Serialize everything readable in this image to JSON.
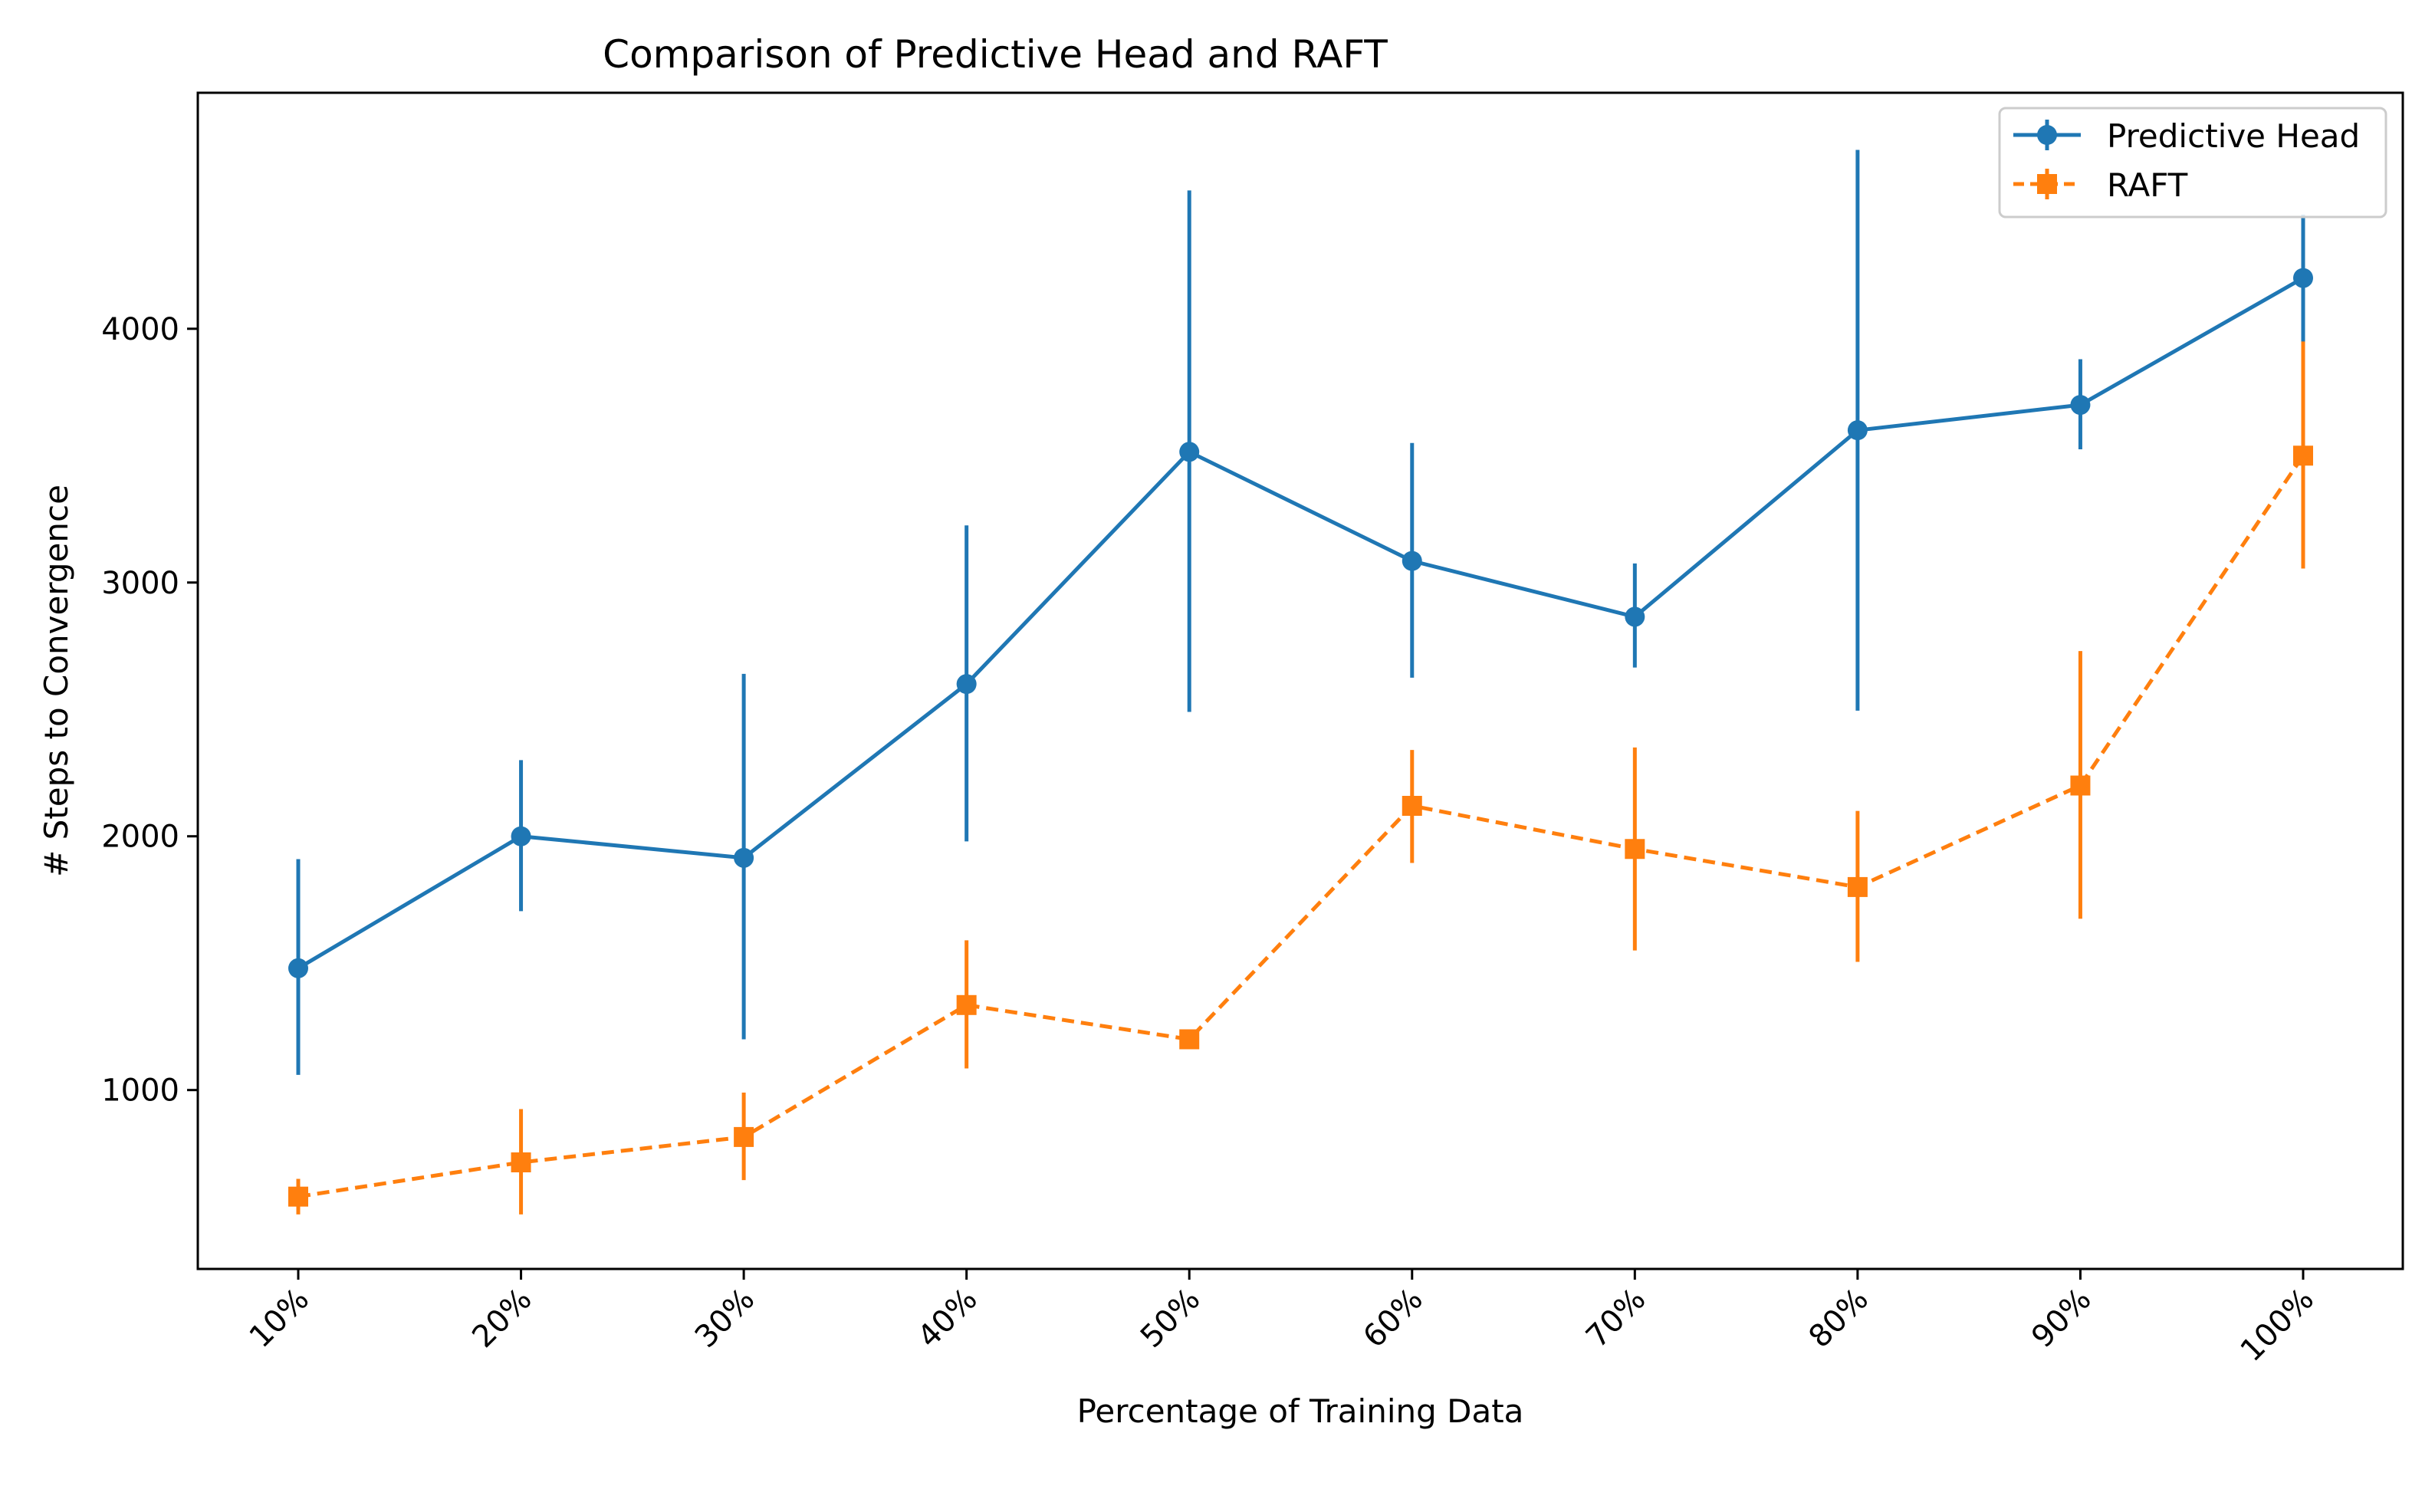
{
  "chart_data": {
    "type": "line",
    "title": "Comparison of Predictive Head and RAFT",
    "xlabel": "Percentage of Training Data",
    "ylabel": "# Steps to Convergence",
    "categories": [
      "10%",
      "20%",
      "30%",
      "40%",
      "50%",
      "60%",
      "70%",
      "80%",
      "90%",
      "100%"
    ],
    "ylim": [
      295,
      4930
    ],
    "yticks": [
      1000,
      2000,
      3000,
      4000
    ],
    "grid": false,
    "legend_position": "upper right",
    "series": [
      {
        "name": "Predictive Head",
        "color": "#1f77b4",
        "linestyle": "solid",
        "marker": "circle",
        "values": [
          1480,
          2000,
          1915,
          2600,
          3515,
          3085,
          2865,
          3600,
          3700,
          4200
        ],
        "error_low": [
          1060,
          1705,
          1200,
          1980,
          2490,
          2625,
          2665,
          2495,
          3525,
          3945
        ],
        "error_high": [
          1910,
          2300,
          2640,
          3225,
          4545,
          3550,
          3075,
          4705,
          3880,
          4450
        ]
      },
      {
        "name": "RAFT",
        "color": "#ff7f0e",
        "linestyle": "dashed",
        "marker": "square",
        "values": [
          580,
          715,
          815,
          1335,
          1200,
          2120,
          1950,
          1800,
          2200,
          3500
        ],
        "error_low": [
          510,
          510,
          645,
          1085,
          1170,
          1895,
          1550,
          1505,
          1675,
          3055
        ],
        "error_high": [
          650,
          925,
          990,
          1590,
          1230,
          2340,
          2350,
          2100,
          2730,
          3950
        ]
      }
    ]
  }
}
